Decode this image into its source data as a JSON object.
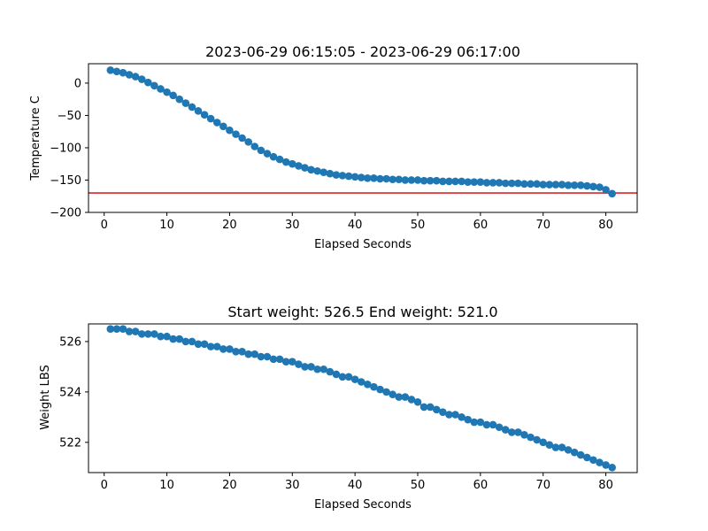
{
  "chart_data": [
    {
      "type": "line",
      "title": "2023-06-29 06:15:05 - 2023-06-29 06:17:00",
      "xlabel": "Elapsed Seconds",
      "ylabel": "Temperature C",
      "xlim": [
        -2.5,
        85
      ],
      "ylim": [
        -200,
        30
      ],
      "xticks": [
        0,
        10,
        20,
        30,
        40,
        50,
        60,
        70,
        80
      ],
      "yticks": [
        0,
        -50,
        -100,
        -150,
        -200
      ],
      "ytick_labels": [
        "0",
        "−50",
        "−100",
        "−150",
        "−200"
      ],
      "reference_line": {
        "y": -170,
        "color": "#d62728"
      },
      "series_color": "#1f77b4",
      "x": [
        1,
        2,
        3,
        4,
        5,
        6,
        7,
        8,
        9,
        10,
        11,
        12,
        13,
        14,
        15,
        16,
        17,
        18,
        19,
        20,
        21,
        22,
        23,
        24,
        25,
        26,
        27,
        28,
        29,
        30,
        31,
        32,
        33,
        34,
        35,
        36,
        37,
        38,
        39,
        40,
        41,
        42,
        43,
        44,
        45,
        46,
        47,
        48,
        49,
        50,
        51,
        52,
        53,
        54,
        55,
        56,
        57,
        58,
        59,
        60,
        61,
        62,
        63,
        64,
        65,
        66,
        67,
        68,
        69,
        70,
        71,
        72,
        73,
        74,
        75,
        76,
        77,
        78,
        79,
        80,
        81
      ],
      "y": [
        20,
        18,
        16,
        13,
        10,
        6,
        1,
        -4,
        -9,
        -14,
        -19,
        -25,
        -31,
        -37,
        -43,
        -49,
        -55,
        -61,
        -67,
        -73,
        -79,
        -85,
        -91,
        -98,
        -104,
        -109,
        -114,
        -118,
        -122,
        -125,
        -128,
        -131,
        -134,
        -136,
        -138,
        -140,
        -142,
        -143,
        -144,
        -145,
        -146,
        -147,
        -147,
        -148,
        -148,
        -149,
        -149,
        -150,
        -150,
        -150,
        -151,
        -151,
        -151,
        -152,
        -152,
        -152,
        -152,
        -153,
        -153,
        -153,
        -154,
        -154,
        -154,
        -155,
        -155,
        -155,
        -156,
        -156,
        -156,
        -157,
        -157,
        -157,
        -157,
        -158,
        -158,
        -158,
        -159,
        -160,
        -161,
        -165,
        -171
      ]
    },
    {
      "type": "scatter",
      "title": "Start weight: 526.5 End weight: 521.0",
      "xlabel": "Elapsed Seconds",
      "ylabel": "Weight LBS",
      "xlim": [
        -2.5,
        85
      ],
      "ylim": [
        520.8,
        526.7
      ],
      "xticks": [
        0,
        10,
        20,
        30,
        40,
        50,
        60,
        70,
        80
      ],
      "yticks": [
        522,
        524,
        526
      ],
      "ytick_labels": [
        "522",
        "524",
        "526"
      ],
      "series_color": "#1f77b4",
      "x": [
        1,
        2,
        3,
        4,
        5,
        6,
        7,
        8,
        9,
        10,
        11,
        12,
        13,
        14,
        15,
        16,
        17,
        18,
        19,
        20,
        21,
        22,
        23,
        24,
        25,
        26,
        27,
        28,
        29,
        30,
        31,
        32,
        33,
        34,
        35,
        36,
        37,
        38,
        39,
        40,
        41,
        42,
        43,
        44,
        45,
        46,
        47,
        48,
        49,
        50,
        51,
        52,
        53,
        54,
        55,
        56,
        57,
        58,
        59,
        60,
        61,
        62,
        63,
        64,
        65,
        66,
        67,
        68,
        69,
        70,
        71,
        72,
        73,
        74,
        75,
        76,
        77,
        78,
        79,
        80,
        81
      ],
      "y": [
        526.5,
        526.5,
        526.5,
        526.4,
        526.4,
        526.3,
        526.3,
        526.3,
        526.2,
        526.2,
        526.1,
        526.1,
        526.0,
        526.0,
        525.9,
        525.9,
        525.8,
        525.8,
        525.7,
        525.7,
        525.6,
        525.6,
        525.5,
        525.5,
        525.4,
        525.4,
        525.3,
        525.3,
        525.2,
        525.2,
        525.1,
        525.0,
        525.0,
        524.9,
        524.9,
        524.8,
        524.7,
        524.6,
        524.6,
        524.5,
        524.4,
        524.3,
        524.2,
        524.1,
        524.0,
        523.9,
        523.8,
        523.8,
        523.7,
        523.6,
        523.4,
        523.4,
        523.3,
        523.2,
        523.1,
        523.1,
        523.0,
        522.9,
        522.8,
        522.8,
        522.7,
        522.7,
        522.6,
        522.5,
        522.4,
        522.4,
        522.3,
        522.2,
        522.1,
        522.0,
        521.9,
        521.8,
        521.8,
        521.7,
        521.6,
        521.5,
        521.4,
        521.3,
        521.2,
        521.1,
        521.0
      ]
    }
  ]
}
